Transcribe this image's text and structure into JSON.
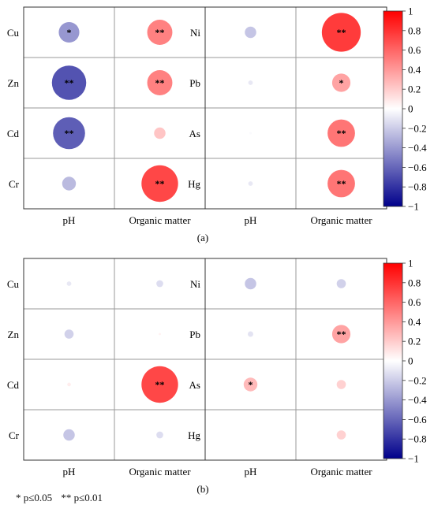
{
  "colors": {
    "negative": "#00008B",
    "neutral": "#FFFFFF",
    "positive": "#FF0000",
    "grid": "#9a9a9a",
    "frame": "#333333"
  },
  "colorbar_ticks": [
    "1",
    "0.8",
    "0.6",
    "0.4",
    "0.2",
    "0",
    "−0.2",
    "−0.4",
    "−0.6",
    "−0.8",
    "−1"
  ],
  "footnote": {
    "one_star": "* p≤0.05",
    "two_star": "** p≤0.01"
  },
  "chart_data": [
    {
      "type": "heatmap",
      "panel_label": "(a)",
      "value_range": [
        -1,
        1
      ],
      "left": {
        "rows": [
          "Cu",
          "Zn",
          "Cd",
          "Cr"
        ],
        "columns": [
          "pH",
          "Organic matter"
        ],
        "values": [
          [
            -0.45,
            0.55
          ],
          [
            -0.75,
            0.55
          ],
          [
            -0.7,
            0.25
          ],
          [
            -0.3,
            0.8
          ]
        ],
        "significance": [
          [
            "*",
            "**"
          ],
          [
            "**",
            "**"
          ],
          [
            "**",
            ""
          ],
          [
            "",
            "**"
          ]
        ]
      },
      "right": {
        "rows": [
          "Ni",
          "Pb",
          "As",
          "Hg"
        ],
        "columns": [
          "pH",
          "Organic matter"
        ],
        "values": [
          [
            -0.25,
            0.85
          ],
          [
            -0.1,
            0.4
          ],
          [
            -0.02,
            0.6
          ],
          [
            -0.1,
            0.6
          ]
        ],
        "significance": [
          [
            "",
            "**"
          ],
          [
            "",
            "*"
          ],
          [
            "",
            "**"
          ],
          [
            "",
            "**"
          ]
        ]
      }
    },
    {
      "type": "heatmap",
      "panel_label": "(b)",
      "value_range": [
        -1,
        1
      ],
      "left": {
        "rows": [
          "Cu",
          "Zn",
          "Cd",
          "Cr"
        ],
        "columns": [
          "pH",
          "Organic matter"
        ],
        "values": [
          [
            -0.1,
            -0.15
          ],
          [
            -0.2,
            0.05
          ],
          [
            0.08,
            0.8
          ],
          [
            -0.25,
            -0.15
          ]
        ],
        "significance": [
          [
            "",
            ""
          ],
          [
            "",
            ""
          ],
          [
            "",
            "**"
          ],
          [
            "",
            ""
          ]
        ]
      },
      "right": {
        "rows": [
          "Ni",
          "Pb",
          "As",
          "Hg"
        ],
        "columns": [
          "pH",
          "Organic matter"
        ],
        "values": [
          [
            -0.25,
            -0.2
          ],
          [
            -0.12,
            0.4
          ],
          [
            0.3,
            0.2
          ],
          [
            0.0,
            0.2
          ]
        ],
        "significance": [
          [
            "",
            ""
          ],
          [
            "",
            "**"
          ],
          [
            "*",
            ""
          ],
          [
            "",
            ""
          ]
        ]
      }
    }
  ]
}
